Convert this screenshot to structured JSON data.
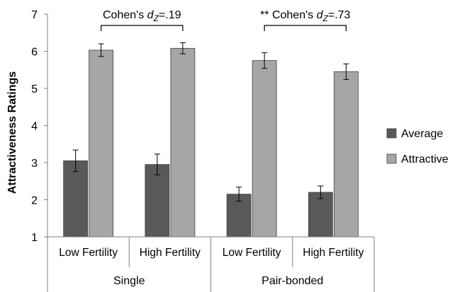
{
  "chart_data": {
    "type": "bar",
    "ylabel": "Attractiveness Ratings",
    "xlabel": "",
    "ylim": [
      1,
      7
    ],
    "yticks": [
      1,
      2,
      3,
      4,
      5,
      6,
      7
    ],
    "grid": false,
    "legend_position": "right",
    "groups": [
      {
        "label": "Single",
        "categories": [
          "Low Fertility",
          "High Fertility"
        ]
      },
      {
        "label": "Pair-bonded",
        "categories": [
          "Low Fertility",
          "High Fertility"
        ]
      }
    ],
    "series": [
      {
        "name": "Average",
        "color": "#595959",
        "values": [
          3.05,
          2.95,
          2.15,
          2.2
        ],
        "errors": [
          0.29,
          0.28,
          0.19,
          0.17
        ]
      },
      {
        "name": "Attractive",
        "color": "#a6a6a6",
        "values": [
          6.03,
          6.08,
          5.75,
          5.45
        ],
        "errors": [
          0.17,
          0.15,
          0.21,
          0.21
        ]
      }
    ],
    "annotations": [
      {
        "prefix": "",
        "text": "Cohen's ",
        "italic": "d",
        "subscript": "Z",
        "value": "=.19",
        "group": 0
      },
      {
        "prefix": "** ",
        "text": "Cohen's ",
        "italic": "d",
        "subscript": "Z",
        "value": "=.73",
        "group": 1
      }
    ]
  }
}
